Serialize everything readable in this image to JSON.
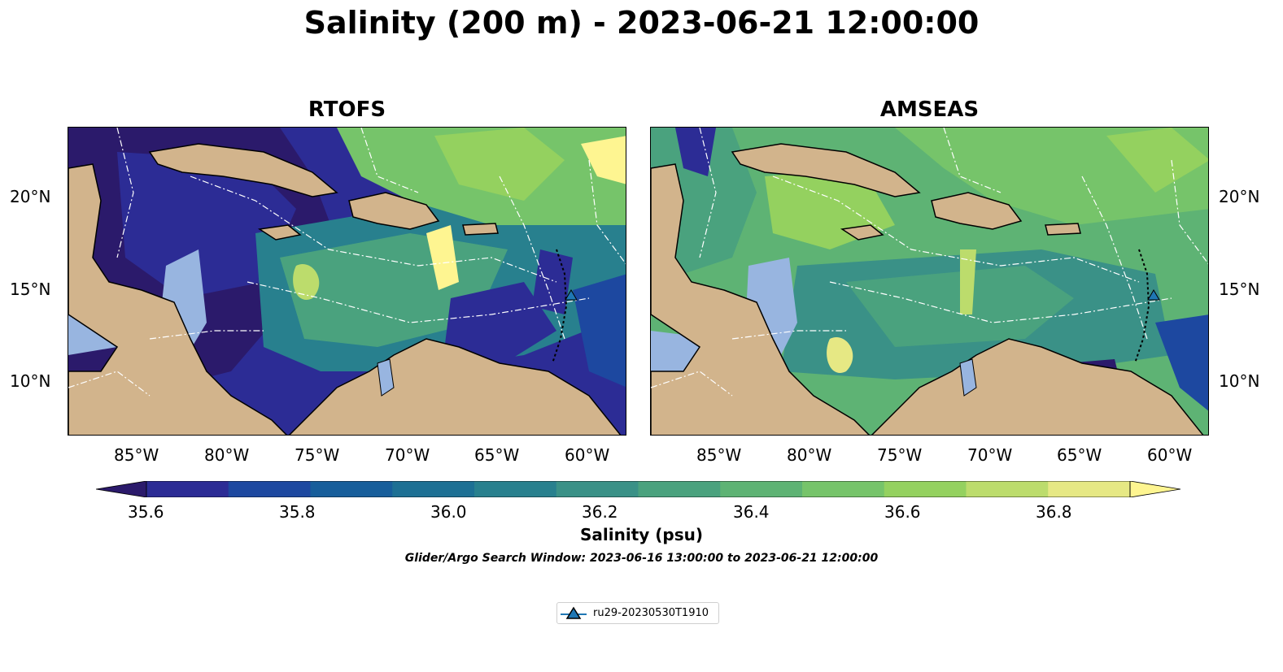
{
  "figure": {
    "title": "Salinity (200 m) - 2023-06-21 12:00:00",
    "search_window": "Glider/Argo Search Window: 2023-06-16 13:00:00 to 2023-06-21 12:00:00"
  },
  "panels": [
    {
      "title": "RTOFS"
    },
    {
      "title": "AMSEAS"
    }
  ],
  "axes": {
    "lon_ticks": [
      "85°W",
      "80°W",
      "75°W",
      "70°W",
      "65°W",
      "60°W"
    ],
    "lon_values": [
      -85,
      -80,
      -75,
      -70,
      -65,
      -60
    ],
    "lat_ticks": [
      "20°N",
      "15°N",
      "10°N"
    ],
    "lat_values": [
      20,
      15,
      10
    ],
    "lon_range": [
      -89,
      -58
    ],
    "lat_range": [
      7,
      24
    ]
  },
  "colorbar": {
    "label": "Salinity (psu)",
    "ticks": [
      "35.6",
      "35.8",
      "36.0",
      "36.2",
      "36.4",
      "36.6",
      "36.8"
    ],
    "range": [
      35.5,
      37.0
    ],
    "extend": "both",
    "colors": [
      "#2b1a6b",
      "#2c2c95",
      "#1d48a0",
      "#175e9b",
      "#1d7094",
      "#28808e",
      "#3a9187",
      "#4aa27e",
      "#5eb374",
      "#76c46a",
      "#94d15f",
      "#bcdc6c",
      "#e6e884",
      "#fef591"
    ]
  },
  "map_colors": {
    "land": "#d2b48c",
    "shelf": "#98b5e0",
    "coast": "#000000",
    "eez": "#ffffff"
  },
  "legend": {
    "label": "ru29-20230530T1910",
    "marker_color": "#1f77b4"
  },
  "glider": {
    "lon": -61.2,
    "lat": 14.5
  }
}
